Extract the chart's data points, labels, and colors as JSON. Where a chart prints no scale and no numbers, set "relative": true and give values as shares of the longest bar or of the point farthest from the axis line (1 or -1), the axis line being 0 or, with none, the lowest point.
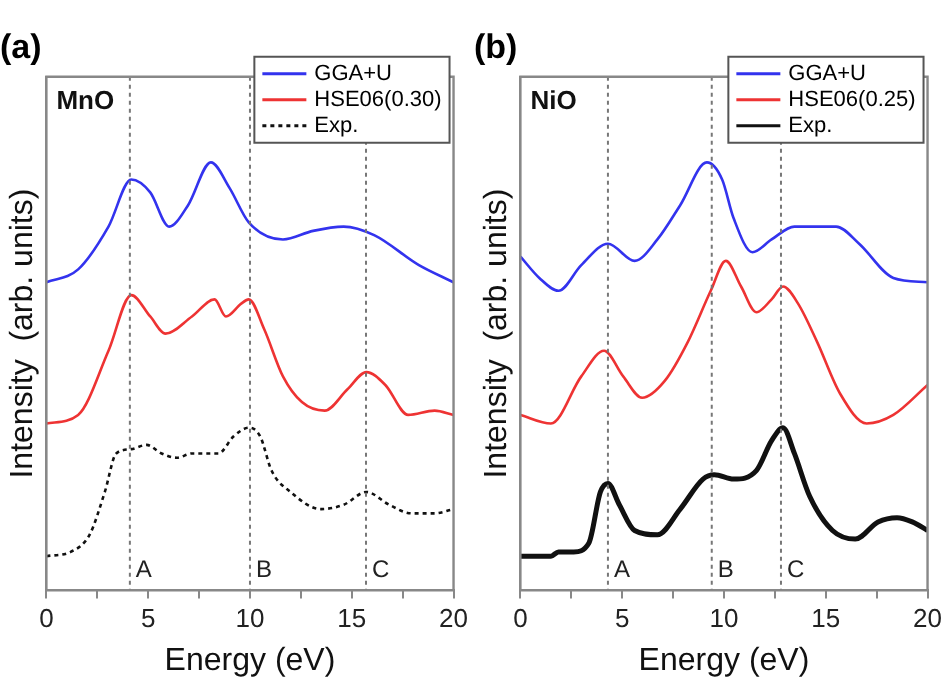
{
  "chart_data": [
    {
      "type": "line",
      "title": "(a)",
      "annotations": [
        "MnO"
      ],
      "xlabel": "Energy (eV)",
      "ylabel": "Intensity  (arb. units)",
      "relative": true,
      "xlim": [
        0,
        20
      ],
      "xticks": [
        0,
        {
          "value": 2.5,
          "label": null
        },
        5,
        {
          "value": 7.5,
          "label": null
        },
        10,
        {
          "value": 12.5,
          "label": null
        },
        15,
        {
          "value": 17.5,
          "label": null
        },
        20
      ],
      "grid": false,
      "legend": "top right",
      "marker": "none",
      "series": [
        {
          "name": "GGA+U",
          "color": "#3333ee",
          "line_style": "solid",
          "x": [
            0,
            1.56,
            3.05,
            4.17,
            5.1,
            6.03,
            6.96,
            8.08,
            9.0,
            9.94,
            11.62,
            13.1,
            14.6,
            16.1,
            18.3,
            20
          ],
          "values": [
            0.72,
            0.75,
            0.85,
            0.96,
            0.93,
            0.85,
            0.9,
            1.0,
            0.94,
            0.86,
            0.82,
            0.84,
            0.85,
            0.83,
            0.76,
            0.72
          ]
        },
        {
          "name": "HSE06(0.30)",
          "color": "#ee3333",
          "line_style": "solid",
          "x": [
            0,
            1.56,
            3.05,
            4.17,
            5.1,
            5.85,
            7.15,
            8.26,
            8.82,
            9.57,
            9.94,
            10.7,
            11.62,
            12.55,
            13.67,
            14.79,
            15.72,
            16.65,
            17.77,
            19.07,
            20
          ],
          "values": [
            0.39,
            0.41,
            0.56,
            0.69,
            0.64,
            0.6,
            0.64,
            0.68,
            0.64,
            0.67,
            0.68,
            0.61,
            0.5,
            0.44,
            0.42,
            0.47,
            0.51,
            0.48,
            0.41,
            0.42,
            0.41
          ]
        },
        {
          "name": "Exp.",
          "color": "#111111",
          "line_style": "dotted",
          "x": [
            0,
            1.19,
            2.12,
            2.87,
            3.43,
            4.17,
            4.92,
            5.66,
            6.41,
            7.15,
            8.45,
            9.2,
            9.94,
            10.5,
            11.06,
            11.99,
            13.48,
            14.6,
            15.72,
            16.84,
            17.95,
            19.07,
            20
          ],
          "values": [
            0.08,
            0.09,
            0.13,
            0.23,
            0.32,
            0.33,
            0.34,
            0.32,
            0.31,
            0.32,
            0.32,
            0.36,
            0.38,
            0.36,
            0.28,
            0.23,
            0.19,
            0.2,
            0.23,
            0.2,
            0.18,
            0.18,
            0.19
          ]
        }
      ],
      "ref_lines": [
        {
          "axis": "x",
          "value": 4.1,
          "label": "A",
          "color": "#777777",
          "line_style": "dotted"
        },
        {
          "axis": "x",
          "value": 10,
          "label": "B",
          "color": "#777777",
          "line_style": "dotted"
        },
        {
          "axis": "x",
          "value": 15.7,
          "label": "C",
          "color": "#777777",
          "line_style": "dotted"
        }
      ]
    },
    {
      "type": "line",
      "title": "(b)",
      "annotations": [
        "NiO"
      ],
      "xlabel": "Energy (eV)",
      "ylabel": "Intensity  (arb. units)",
      "relative": true,
      "xlim": [
        0,
        20
      ],
      "xticks": [
        0,
        {
          "value": 2.5,
          "label": null
        },
        5,
        {
          "value": 7.5,
          "label": null
        },
        10,
        {
          "value": 12.5,
          "label": null
        },
        15,
        {
          "value": 17.5,
          "label": null
        },
        20
      ],
      "grid": false,
      "legend": "top right",
      "marker": "none",
      "series": [
        {
          "name": "GGA+U",
          "color": "#3333ee",
          "line_style": "solid",
          "x": [
            0,
            0.93,
            1.87,
            2.99,
            4.3,
            5.61,
            6.73,
            7.85,
            9.16,
            9.91,
            10.47,
            11.4,
            12.34,
            13.46,
            14.39,
            15.51,
            16.64,
            18.32,
            20
          ],
          "values": [
            0.78,
            0.73,
            0.7,
            0.76,
            0.81,
            0.77,
            0.82,
            0.9,
            1.0,
            0.96,
            0.87,
            0.79,
            0.82,
            0.85,
            0.85,
            0.85,
            0.81,
            0.73,
            0.72
          ]
        },
        {
          "name": "HSE06(0.25)",
          "color": "#ee3333",
          "line_style": "solid",
          "x": [
            0,
            1.5,
            2.99,
            4.11,
            5.05,
            5.98,
            7.1,
            8.22,
            9.35,
            10.09,
            10.84,
            11.59,
            12.34,
            12.9,
            13.64,
            14.58,
            15.7,
            17.01,
            18.32,
            20
          ],
          "values": [
            0.41,
            0.39,
            0.5,
            0.56,
            0.5,
            0.45,
            0.49,
            0.58,
            0.7,
            0.77,
            0.71,
            0.65,
            0.68,
            0.71,
            0.67,
            0.58,
            0.46,
            0.39,
            0.41,
            0.48
          ]
        },
        {
          "name": "Exp.",
          "color": "#111111",
          "line_style": "solid",
          "x": [
            0,
            1.5,
            1.87,
            2.62,
            3.36,
            3.93,
            4.3,
            4.86,
            5.61,
            6.73,
            7.85,
            8.97,
            9.53,
            10.47,
            11.59,
            12.34,
            12.9,
            13.46,
            14.21,
            15.33,
            16.45,
            17.57,
            18.5,
            19.25,
            20
          ],
          "values": [
            0.08,
            0.08,
            0.09,
            0.09,
            0.11,
            0.23,
            0.25,
            0.2,
            0.14,
            0.13,
            0.19,
            0.26,
            0.27,
            0.26,
            0.28,
            0.35,
            0.38,
            0.32,
            0.22,
            0.14,
            0.12,
            0.16,
            0.17,
            0.16,
            0.14
          ]
        }
      ],
      "ref_lines": [
        {
          "axis": "x",
          "value": 4.3,
          "label": "A",
          "color": "#777777",
          "line_style": "dotted"
        },
        {
          "axis": "x",
          "value": 9.4,
          "label": "B",
          "color": "#777777",
          "line_style": "dotted"
        },
        {
          "axis": "x",
          "value": 12.8,
          "label": "C",
          "color": "#777777",
          "line_style": "dotted"
        }
      ]
    }
  ]
}
